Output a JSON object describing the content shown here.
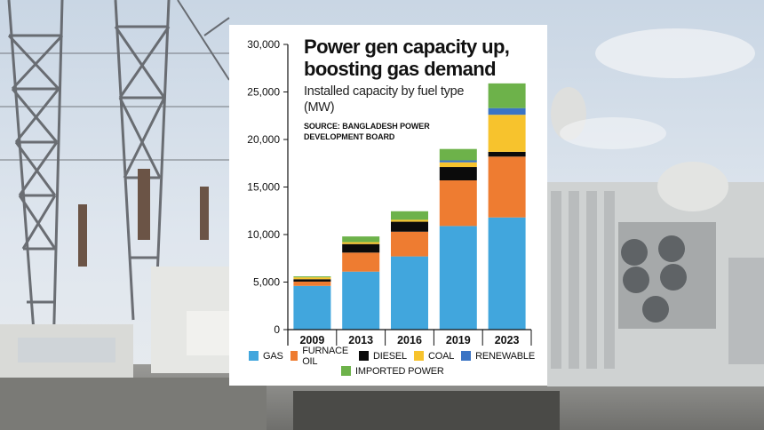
{
  "chart_data": {
    "type": "bar",
    "stacked": true,
    "title": "Power gen capacity up, boosting gas demand",
    "subtitle": "Installed capacity by fuel type (MW)",
    "source": "SOURCE: BANGLADESH POWER DEVELOPMENT BOARD",
    "categories": [
      "2009",
      "2013",
      "2016",
      "2019",
      "2023"
    ],
    "series": [
      {
        "name": "GAS",
        "color": "#41a6dd",
        "values": [
          4600,
          6100,
          7700,
          10900,
          11800
        ]
      },
      {
        "name": "FURNACE OIL",
        "color": "#ee7c31",
        "values": [
          450,
          2000,
          2600,
          4800,
          6400
        ]
      },
      {
        "name": "DIESEL",
        "color": "#0b0b0b",
        "values": [
          250,
          900,
          1050,
          1400,
          500
        ]
      },
      {
        "name": "COAL",
        "color": "#f7c32d",
        "values": [
          200,
          200,
          200,
          500,
          3900
        ]
      },
      {
        "name": "RENEWABLE",
        "color": "#3b74c4",
        "values": [
          0,
          0,
          0,
          200,
          700
        ]
      },
      {
        "name": "IMPORTED POWER",
        "color": "#6db24a",
        "values": [
          100,
          600,
          900,
          1200,
          2600
        ]
      }
    ],
    "yticks": [
      "0",
      "5,000",
      "10,000",
      "15,000",
      "20,000",
      "25,000",
      "30,000"
    ],
    "ylim": [
      0,
      30000
    ],
    "xlabel": "",
    "ylabel": ""
  }
}
